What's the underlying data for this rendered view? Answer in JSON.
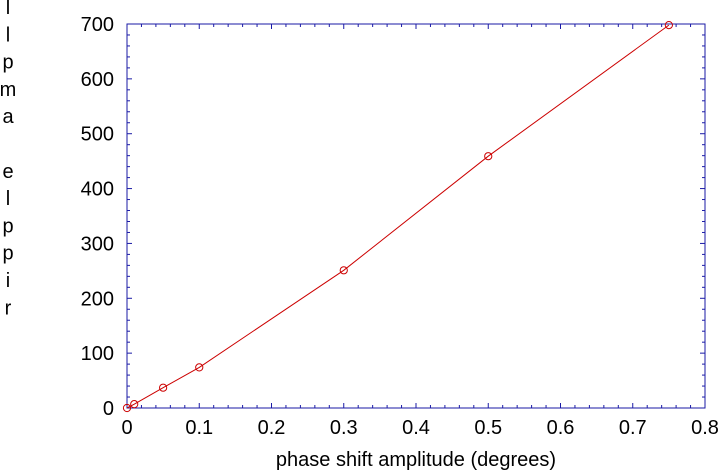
{
  "chart_data": {
    "type": "line",
    "title": "",
    "xlabel": "phase shift amplitude (degrees)",
    "ylabel_vertical_chars": [
      "l",
      "l",
      "p",
      "m",
      "a",
      "",
      "e",
      "l",
      "p",
      "p",
      "i",
      "r"
    ],
    "xlim": [
      0,
      0.8
    ],
    "ylim": [
      0,
      700
    ],
    "x_ticks": [
      0,
      0.1,
      0.2,
      0.3,
      0.4,
      0.5,
      0.6,
      0.7,
      0.8
    ],
    "x_tick_labels": [
      "0",
      "0.1",
      "0.2",
      "0.3",
      "0.4",
      "0.5",
      "0.6",
      "0.7",
      "0.8"
    ],
    "y_ticks": [
      0,
      100,
      200,
      300,
      400,
      500,
      600,
      700
    ],
    "y_tick_labels": [
      "0",
      "100",
      "200",
      "300",
      "400",
      "500",
      "600",
      "700"
    ],
    "grid": false,
    "series": [
      {
        "x": [
          0,
          0.01,
          0.05,
          0.1,
          0.3,
          0.5,
          0.75
        ],
        "y": [
          0,
          7,
          37,
          74,
          251,
          459,
          698
        ],
        "color": "#cc0000",
        "marker": "circle"
      }
    ],
    "axis_color": "#1a1aa6"
  }
}
